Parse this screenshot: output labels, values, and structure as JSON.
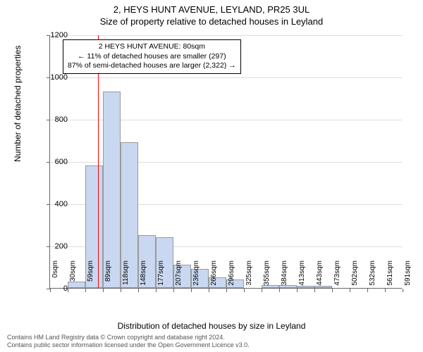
{
  "title_main": "2, HEYS HUNT AVENUE, LEYLAND, PR25 3UL",
  "title_sub": "Size of property relative to detached houses in Leyland",
  "y_axis_label": "Number of detached properties",
  "x_axis_label": "Distribution of detached houses by size in Leyland",
  "chart": {
    "type": "histogram",
    "background_color": "#ffffff",
    "grid_color": "#dddddd",
    "axis_color": "#666666",
    "bar_fill": "#c9d8f0",
    "bar_border": "#999999",
    "marker_color": "#ff0000",
    "ylim": [
      0,
      1200
    ],
    "ytick_step": 200,
    "x_ticks": [
      "0sqm",
      "30sqm",
      "59sqm",
      "89sqm",
      "118sqm",
      "148sqm",
      "177sqm",
      "207sqm",
      "236sqm",
      "266sqm",
      "296sqm",
      "325sqm",
      "355sqm",
      "384sqm",
      "413sqm",
      "443sqm",
      "473sqm",
      "502sqm",
      "532sqm",
      "561sqm",
      "591sqm"
    ],
    "values": [
      0,
      30,
      580,
      930,
      690,
      250,
      240,
      110,
      90,
      50,
      40,
      0,
      15,
      15,
      10,
      10,
      0,
      0,
      0,
      0
    ],
    "marker_position_sqm": 80,
    "annotation": {
      "line1": "2 HEYS HUNT AVENUE: 80sqm",
      "line2": "← 11% of detached houses are smaller (297)",
      "line3": "87% of semi-detached houses are larger (2,322) →"
    },
    "label_fontsize": 12,
    "tick_fontsize": 11
  },
  "footer": {
    "line1": "Contains HM Land Registry data © Crown copyright and database right 2024.",
    "line2": "Contains public sector information licensed under the Open Government Licence v3.0."
  }
}
